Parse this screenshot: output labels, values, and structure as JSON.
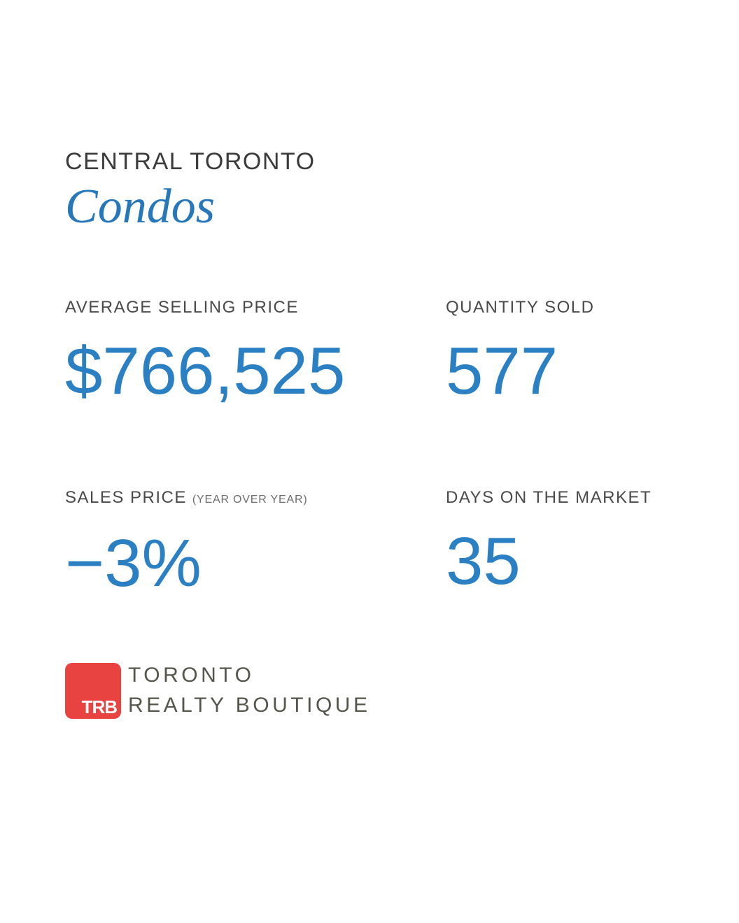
{
  "header": {
    "region": "CENTRAL TORONTO",
    "segment": "Condos"
  },
  "stats": [
    {
      "label": "AVERAGE SELLING PRICE",
      "value": "$766,525"
    },
    {
      "label": "QUANTITY SOLD",
      "value": "577"
    },
    {
      "label": "SALES PRICE",
      "note": "(YEAR OVER YEAR)",
      "value": "−3%"
    },
    {
      "label": "DAYS ON THE MARKET",
      "value": "35"
    }
  ],
  "logo": {
    "badge": "TRB",
    "line1": "TORONTO",
    "line2": "REALTY BOUTIQUE"
  },
  "colors": {
    "value_blue": "#2b80c4",
    "segment_blue": "#2778ba",
    "heading_gray": "#3b3b3b",
    "label_gray": "#4a4a4a",
    "note_gray": "#6e6e6e",
    "badge_red": "#e94341",
    "brand_text": "#55554b",
    "background": "#ffffff"
  }
}
